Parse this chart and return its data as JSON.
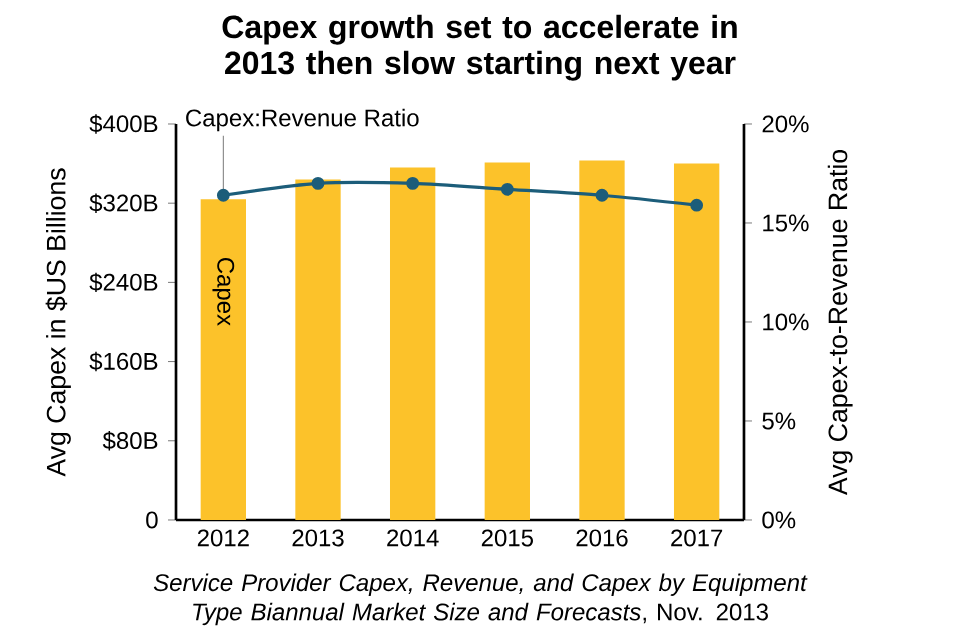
{
  "chart_data": {
    "type": "bar",
    "title": "Capex growth set to accelerate in 2013 then slow starting next year",
    "categories": [
      "2012",
      "2013",
      "2014",
      "2015",
      "2016",
      "2017"
    ],
    "series": [
      {
        "name": "Capex",
        "color": "#fcc22a",
        "values": [
          324,
          344,
          356,
          361,
          363,
          360
        ]
      },
      {
        "name": "Capex:Revenue Ratio",
        "type": "line",
        "axis": "y2",
        "color": "#1c5d7a",
        "marker": "circle",
        "values": [
          16.4,
          17.0,
          17.0,
          16.7,
          16.4,
          15.9
        ]
      }
    ],
    "ylabel": "Avg Capex in $US Billions",
    "y2label": "Avg Capex-to-Revenue Ratio",
    "ylim": [
      0,
      400
    ],
    "yticks": [
      0,
      {
        "value": 80,
        "label": "$80B"
      },
      {
        "value": 160,
        "label": "$160B"
      },
      {
        "value": 240,
        "label": "$240B"
      },
      {
        "value": 320,
        "label": "$320B"
      },
      {
        "value": 400,
        "label": "$400B"
      }
    ],
    "y2lim": [
      0,
      20
    ],
    "y2ticks": [
      {
        "value": 0,
        "label": "0%"
      },
      {
        "value": 5,
        "label": "5%"
      },
      {
        "value": 10,
        "label": "10%"
      },
      {
        "value": 15,
        "label": "15%"
      },
      {
        "value": 20,
        "label": "20%"
      }
    ],
    "annotations": [
      "*Service Provider Capex, Revenue, and Capex by Equipment Type Biannual Market Size and Forecasts*, Nov. 2013"
    ]
  }
}
